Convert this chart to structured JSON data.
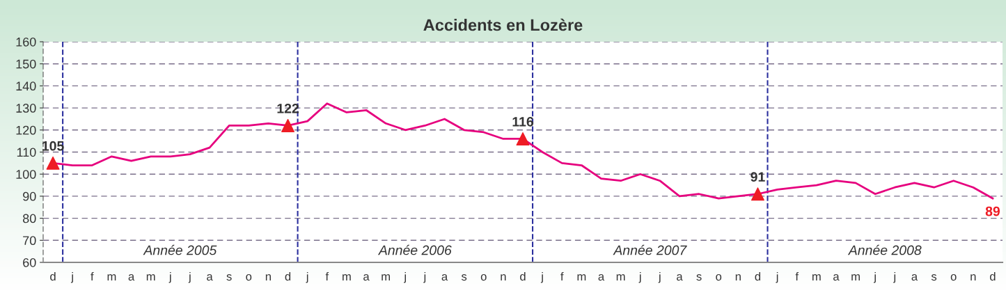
{
  "chart_data": {
    "type": "line",
    "title": "Accidents en Lozère",
    "categories": [
      "d",
      "j",
      "f",
      "m",
      "a",
      "m",
      "j",
      "j",
      "a",
      "s",
      "o",
      "n",
      "d",
      "j",
      "f",
      "m",
      "a",
      "m",
      "j",
      "j",
      "a",
      "s",
      "o",
      "n",
      "d",
      "j",
      "f",
      "m",
      "a",
      "m",
      "j",
      "j",
      "a",
      "s",
      "o",
      "n",
      "d",
      "j",
      "f",
      "m",
      "a",
      "m",
      "j",
      "j",
      "a",
      "s",
      "o",
      "n",
      "d"
    ],
    "series": [
      {
        "color": "#e6007e",
        "marker": "none",
        "values": [
          105,
          104,
          104,
          108,
          106,
          108,
          108,
          109,
          112,
          122,
          122,
          123,
          122,
          124,
          132,
          128,
          129,
          123,
          120,
          122,
          125,
          120,
          119,
          116,
          116,
          110,
          105,
          104,
          98,
          97,
          100,
          97,
          90,
          91,
          89,
          90,
          91,
          93,
          94,
          95,
          97,
          96,
          91,
          94,
          96,
          94,
          97,
          94,
          89
        ],
        "value_labels": [
          "105",
          null,
          null,
          null,
          null,
          null,
          null,
          null,
          null,
          null,
          null,
          null,
          "122",
          null,
          null,
          null,
          null,
          null,
          null,
          null,
          null,
          null,
          null,
          null,
          "116",
          null,
          null,
          null,
          null,
          null,
          null,
          null,
          null,
          null,
          null,
          null,
          "91",
          null,
          null,
          null,
          null,
          null,
          null,
          null,
          null,
          null,
          null,
          null,
          "89"
        ]
      },
      {
        "type": "scatter",
        "color": "#ee1c25",
        "marker": "triangle",
        "values": [
          105,
          null,
          null,
          null,
          null,
          null,
          null,
          null,
          null,
          null,
          null,
          null,
          122,
          null,
          null,
          null,
          null,
          null,
          null,
          null,
          null,
          null,
          null,
          null,
          116,
          null,
          null,
          null,
          null,
          null,
          null,
          null,
          null,
          null,
          null,
          null,
          91,
          null,
          null,
          null,
          null,
          null,
          null,
          null,
          null,
          null,
          null,
          null,
          null
        ]
      }
    ],
    "annotations": [
      "Année 2005",
      "Année 2006",
      "Année 2007",
      "Année 2008"
    ],
    "ylim": [
      60,
      160
    ],
    "yticks": [
      60,
      70,
      80,
      90,
      100,
      110,
      120,
      130,
      140,
      150,
      160
    ],
    "grid": "y",
    "legend": false
  }
}
